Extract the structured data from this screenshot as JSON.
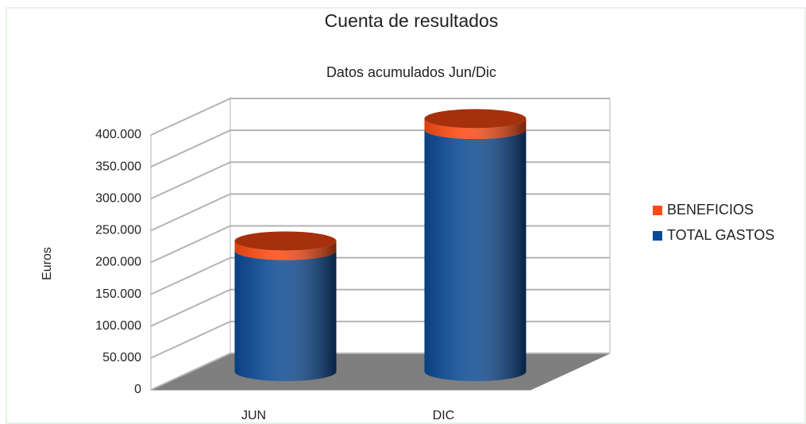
{
  "chart_data": {
    "type": "bar3d_stacked",
    "title": "Cuenta de resultados",
    "subtitle": "Datos acumulados Jun/Dic",
    "y_label": "Euros",
    "categories": [
      "JUN",
      "DIC"
    ],
    "series": [
      {
        "name": "TOTAL GASTOS",
        "color": "#0b4a96",
        "values": [
          190000,
          380000
        ]
      },
      {
        "name": "BENEFICIOS",
        "color": "#ff4a12",
        "values": [
          15000,
          17000
        ]
      }
    ],
    "legend_order": [
      1,
      0
    ],
    "ylim": [
      0,
      400000
    ],
    "yticks": [
      0,
      {
        "value": 50000,
        "label": "50.000"
      },
      {
        "value": 100000,
        "label": "100.000"
      },
      {
        "value": 150000,
        "label": "150.000"
      },
      {
        "value": 200000,
        "label": "200.000"
      },
      {
        "value": 250000,
        "label": "250.000"
      },
      {
        "value": 300000,
        "label": "300.000"
      },
      {
        "value": 350000,
        "label": "350.000"
      },
      {
        "value": 400000,
        "label": "400.000"
      }
    ],
    "grid": true,
    "legend": "right"
  }
}
